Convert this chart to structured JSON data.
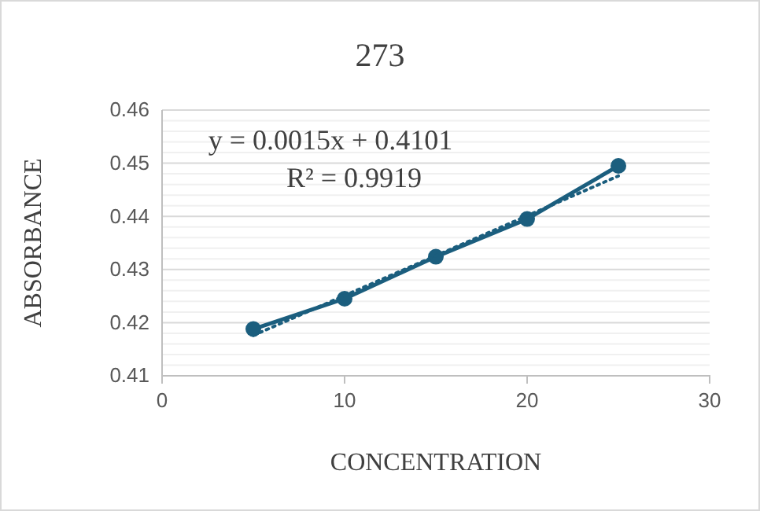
{
  "chart_data": {
    "type": "line",
    "title": "273",
    "xlabel": "CONCENTRATION",
    "ylabel": "ABSORBANCE",
    "xlim": [
      0,
      30
    ],
    "xticks": [
      0,
      10,
      20,
      30
    ],
    "ylim": [
      0.41,
      0.46
    ],
    "yticks": [
      0.41,
      {
        "value": 0.412,
        "label": null
      },
      {
        "value": 0.414,
        "label": null
      },
      {
        "value": 0.416,
        "label": null
      },
      {
        "value": 0.418,
        "label": null
      },
      0.42,
      {
        "value": 0.422,
        "label": null
      },
      {
        "value": 0.424,
        "label": null
      },
      {
        "value": 0.426,
        "label": null
      },
      {
        "value": 0.428,
        "label": null
      },
      0.43,
      {
        "value": 0.432,
        "label": null
      },
      {
        "value": 0.434,
        "label": null
      },
      {
        "value": 0.436,
        "label": null
      },
      {
        "value": 0.438,
        "label": null
      },
      0.44,
      {
        "value": 0.442,
        "label": null
      },
      {
        "value": 0.444,
        "label": null
      },
      {
        "value": 0.446,
        "label": null
      },
      {
        "value": 0.448,
        "label": null
      },
      0.45,
      {
        "value": 0.452,
        "label": null
      },
      {
        "value": 0.454,
        "label": null
      },
      {
        "value": 0.456,
        "label": null
      },
      {
        "value": 0.458,
        "label": null
      },
      0.46
    ],
    "grid": "y",
    "series": [
      {
        "type": "line",
        "color": "#1b5e7e",
        "x": [
          5,
          10,
          15,
          20,
          25
        ],
        "values": [
          0.4188,
          0.4245,
          0.4324,
          0.4395,
          0.4495
        ],
        "marker": "circle",
        "line_style": "solid"
      },
      {
        "type": "line",
        "color": "#1b5e7e",
        "x": [
          5,
          25
        ],
        "values": [
          0.4176,
          0.4476
        ],
        "marker": "none",
        "line_style": "dotted"
      }
    ],
    "annotations": [
      "y = 0.0015x + 0.4101",
      "R² = 0.9919"
    ]
  }
}
